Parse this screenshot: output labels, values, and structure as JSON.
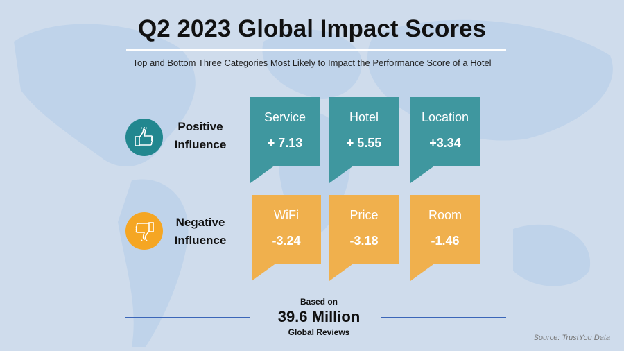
{
  "title": "Q2 2023 Global Impact Scores",
  "subtitle": "Top and  Bottom Three Categories Most Likely to Impact the Performance Score of a Hotel",
  "colors": {
    "background": "#cfdcec",
    "positive": "#3f979f",
    "negative": "#f0b04d",
    "rule": "#3b66b8"
  },
  "positive": {
    "label_line1": "Positive",
    "label_line2": "Influence",
    "icon": "thumbs-up-icon",
    "items": [
      {
        "category": "Service",
        "score": "+ 7.13"
      },
      {
        "category": "Hotel",
        "score": "+ 5.55"
      },
      {
        "category": "Location",
        "score": "+3.34"
      }
    ]
  },
  "negative": {
    "label_line1": "Negative",
    "label_line2": "Influence",
    "icon": "thumbs-down-icon",
    "items": [
      {
        "category": "WiFi",
        "score": "-3.24"
      },
      {
        "category": "Price",
        "score": "-3.18"
      },
      {
        "category": "Room",
        "score": "-1.46"
      }
    ]
  },
  "footer": {
    "based_on": "Based on",
    "total": "39.6 Million",
    "reviews": "Global Reviews",
    "source": "Source: TrustYou  Data"
  }
}
